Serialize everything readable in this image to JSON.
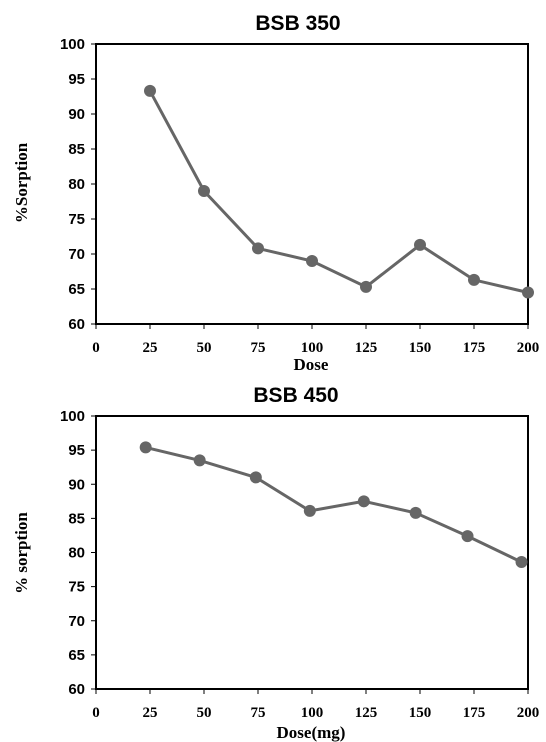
{
  "colors": {
    "series": "#666666",
    "marker": "#666666",
    "frame": "#000000"
  },
  "chart_data": [
    {
      "type": "line",
      "title": "BSB 350",
      "xlabel": "Dose",
      "ylabel": "%Sorption",
      "xlim": [
        0,
        200
      ],
      "ylim": [
        60,
        100
      ],
      "xticks": [
        0,
        25,
        50,
        75,
        100,
        125,
        150,
        175,
        200
      ],
      "yticks": [
        60,
        65,
        70,
        75,
        80,
        85,
        90,
        95,
        100
      ],
      "grid": false,
      "legend": "none",
      "series": [
        {
          "x": [
            25,
            50,
            75,
            100,
            125,
            150,
            175,
            200
          ],
          "y": [
            93.3,
            79.0,
            70.8,
            69.0,
            65.3,
            71.3,
            66.3,
            64.5
          ]
        }
      ]
    },
    {
      "type": "line",
      "title": "BSB 450",
      "xlabel": "Dose(mg)",
      "ylabel": "% sorption",
      "xlim": [
        0,
        200
      ],
      "ylim": [
        60,
        100
      ],
      "xticks": [
        0,
        25,
        50,
        75,
        100,
        125,
        150,
        175,
        200
      ],
      "yticks": [
        60,
        65,
        70,
        75,
        80,
        85,
        90,
        95,
        100
      ],
      "grid": false,
      "legend": "none",
      "series": [
        {
          "x": [
            23,
            48,
            74,
            99,
            124,
            148,
            172,
            197
          ],
          "y": [
            95.4,
            93.5,
            91.0,
            86.1,
            87.5,
            85.8,
            82.4,
            78.6
          ]
        }
      ]
    }
  ]
}
